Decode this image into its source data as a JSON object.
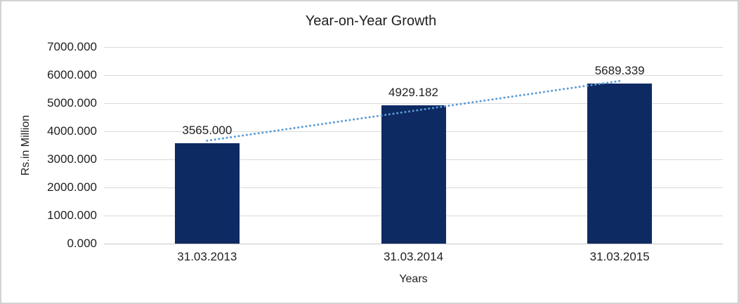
{
  "chart_data": {
    "type": "bar",
    "title": "Year-on-Year Growth",
    "xlabel": "Years",
    "ylabel": "Rs.in Million",
    "categories": [
      "31.03.2013",
      "31.03.2014",
      "31.03.2015"
    ],
    "values": [
      3565.0,
      4929.182,
      5689.339
    ],
    "value_labels": [
      "3565.000",
      "4929.182",
      "5689.339"
    ],
    "ylim": [
      0,
      7000
    ],
    "ytick_step": 1000,
    "ytick_labels": [
      "0.000",
      "1000.000",
      "2000.000",
      "3000.000",
      "4000.000",
      "5000.000",
      "6000.000",
      "7000.000"
    ],
    "grid": true,
    "legend": "none",
    "trendline": {
      "type": "linear",
      "style": "dotted"
    },
    "colors": {
      "bar": "#0e2a63",
      "trendline": "#5b9bd5",
      "gridline": "#d9d9d9",
      "axis_line": "#c6c6c6",
      "text": "#1f1f1f",
      "background": "#ffffff",
      "border": "#d2d2d2"
    }
  }
}
